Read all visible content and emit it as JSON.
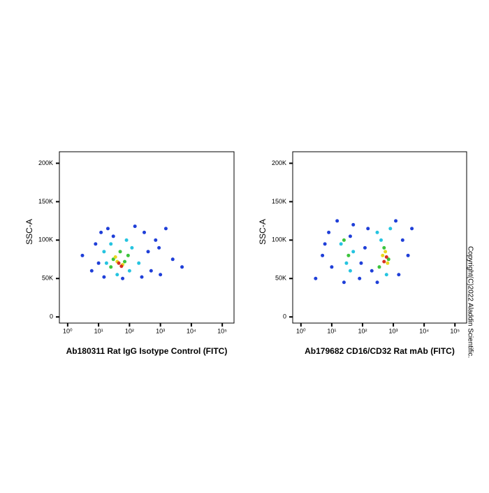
{
  "chart_data": [
    {
      "type": "scatter",
      "xlabel": "Ab180311 Rat IgG Isotype Control (FITC)",
      "ylabel": "SSC-A",
      "xscale": "log",
      "xlim": [
        0.54,
        240000
      ],
      "xticks": [
        {
          "value": 1,
          "label": "10⁰"
        },
        {
          "value": 10,
          "label": "10¹"
        },
        {
          "value": 100,
          "label": "10²"
        },
        {
          "value": 1000,
          "label": "10³"
        },
        {
          "value": 10000,
          "label": "10⁴"
        },
        {
          "value": 100000,
          "label": "10⁵"
        }
      ],
      "ylim": [
        -8000,
        215000
      ],
      "yticks": [
        0,
        {
          "value": 50000,
          "label": "50K"
        },
        {
          "value": 100000,
          "label": "100K"
        },
        {
          "value": 150000,
          "label": "150K"
        },
        {
          "value": 200000,
          "label": "200K"
        }
      ],
      "series": [
        {
          "color": "#1f3fd8",
          "x": [
            6,
            8,
            12,
            20,
            300,
            500,
            900,
            1500,
            3,
            1000,
            15,
            150,
            700,
            2500,
            10,
            60,
            250,
            30,
            400,
            5000
          ],
          "y": [
            60000,
            95000,
            110000,
            115000,
            110000,
            60000,
            90000,
            115000,
            80000,
            55000,
            52000,
            118000,
            100000,
            75000,
            70000,
            50000,
            52000,
            105000,
            85000,
            65000
          ]
        },
        {
          "color": "#25c4e0",
          "x": [
            15,
            25,
            80,
            120,
            200,
            18,
            40,
            100
          ],
          "y": [
            85000,
            95000,
            100000,
            90000,
            70000,
            70000,
            55000,
            60000
          ]
        },
        {
          "color": "#3cc43c",
          "x": [
            30,
            50,
            70,
            25,
            90
          ],
          "y": [
            75000,
            85000,
            72000,
            65000,
            80000
          ]
        },
        {
          "color": "#e8d820",
          "x": [
            40,
            60,
            35
          ],
          "y": [
            72000,
            68000,
            78000
          ]
        },
        {
          "color": "#d83020",
          "x": [
            45,
            55
          ],
          "y": [
            70000,
            66000
          ]
        }
      ]
    },
    {
      "type": "scatter",
      "xlabel": "Ab179682 CD16/CD32 Rat mAb (FITC)",
      "ylabel": "SSC-A",
      "xscale": "log",
      "xlim": [
        0.54,
        240000
      ],
      "xticks": [
        {
          "value": 1,
          "label": "10⁰"
        },
        {
          "value": 10,
          "label": "10¹"
        },
        {
          "value": 100,
          "label": "10²"
        },
        {
          "value": 1000,
          "label": "10³"
        },
        {
          "value": 10000,
          "label": "10⁴"
        },
        {
          "value": 100000,
          "label": "10⁵"
        }
      ],
      "ylim": [
        -8000,
        215000
      ],
      "yticks": [
        0,
        {
          "value": 50000,
          "label": "50K"
        },
        {
          "value": 100000,
          "label": "100K"
        },
        {
          "value": 150000,
          "label": "150K"
        },
        {
          "value": 200000,
          "label": "200K"
        }
      ],
      "series": [
        {
          "color": "#1f3fd8",
          "x": [
            3,
            5,
            8,
            15,
            50,
            120,
            200,
            2000,
            4000,
            1500,
            10,
            25,
            80,
            150,
            1200,
            300,
            6,
            40,
            90,
            3000
          ],
          "y": [
            50000,
            80000,
            110000,
            125000,
            120000,
            90000,
            60000,
            100000,
            115000,
            55000,
            65000,
            45000,
            50000,
            115000,
            125000,
            45000,
            95000,
            105000,
            70000,
            80000
          ]
        },
        {
          "color": "#25c4e0",
          "x": [
            20,
            30,
            50,
            40,
            300,
            800,
            600,
            400
          ],
          "y": [
            95000,
            70000,
            85000,
            60000,
            110000,
            115000,
            55000,
            100000
          ]
        },
        {
          "color": "#3cc43c",
          "x": [
            35,
            25,
            500,
            700,
            350
          ],
          "y": [
            80000,
            100000,
            90000,
            75000,
            65000
          ]
        },
        {
          "color": "#e8d820",
          "x": [
            450,
            650,
            550
          ],
          "y": [
            80000,
            70000,
            85000
          ]
        },
        {
          "color": "#d83020",
          "x": [
            500,
            600
          ],
          "y": [
            72000,
            78000
          ]
        }
      ]
    }
  ],
  "copyright": "Copyright(C)2022 Aladdin Scientific."
}
